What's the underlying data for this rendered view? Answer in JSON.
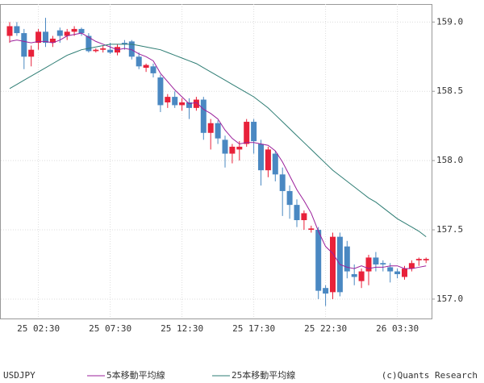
{
  "chart_data": {
    "type": "candlestick",
    "symbol": "USDJPY",
    "credit": "(c)Quants Research",
    "categories": [
      null,
      null,
      null,
      null,
      "25 02:30",
      null,
      null,
      null,
      null,
      null,
      null,
      null,
      null,
      null,
      "25 07:30",
      null,
      null,
      null,
      null,
      null,
      null,
      null,
      null,
      null,
      "25 12:30",
      null,
      null,
      null,
      null,
      null,
      null,
      null,
      null,
      null,
      "25 17:30",
      null,
      null,
      null,
      null,
      null,
      null,
      null,
      null,
      null,
      "25 22:30",
      null,
      null,
      null,
      null,
      null,
      null,
      null,
      null,
      null,
      "26 03:30",
      null,
      null,
      null,
      null
    ],
    "open": [
      158.9,
      158.97,
      158.92,
      158.75,
      158.85,
      158.93,
      158.85,
      158.94,
      158.9,
      158.93,
      158.95,
      158.9,
      158.79,
      158.8,
      158.8,
      158.78,
      158.85,
      158.86,
      158.75,
      158.67,
      158.68,
      158.6,
      158.42,
      158.46,
      158.4,
      158.42,
      158.38,
      158.44,
      158.2,
      158.27,
      158.15,
      158.05,
      158.08,
      158.12,
      158.28,
      158.12,
      157.93,
      158.05,
      157.9,
      157.78,
      157.68,
      157.57,
      157.5,
      157.5,
      157.08,
      157.05,
      157.45,
      157.38,
      157.18,
      157.13,
      157.2,
      157.3,
      157.26,
      157.23,
      157.2,
      157.16,
      157.22,
      157.28,
      157.28
    ],
    "high": [
      159.0,
      159.0,
      158.95,
      158.83,
      158.95,
      159.03,
      158.9,
      158.96,
      158.95,
      158.97,
      158.96,
      158.92,
      158.81,
      158.83,
      158.85,
      158.84,
      158.87,
      158.87,
      158.78,
      158.7,
      158.7,
      158.62,
      158.48,
      158.5,
      158.45,
      158.45,
      158.46,
      158.46,
      158.3,
      158.29,
      158.18,
      158.12,
      158.14,
      158.3,
      158.3,
      158.15,
      158.1,
      158.07,
      157.95,
      157.82,
      157.72,
      157.64,
      157.53,
      157.52,
      157.1,
      157.48,
      157.48,
      157.42,
      157.25,
      157.22,
      157.32,
      157.34,
      157.28,
      157.26,
      157.22,
      157.24,
      157.28,
      157.3,
      157.3
    ],
    "low": [
      158.85,
      158.9,
      158.66,
      158.68,
      158.8,
      158.82,
      158.82,
      158.85,
      158.87,
      158.9,
      158.9,
      158.78,
      158.78,
      158.78,
      158.77,
      158.76,
      158.8,
      158.73,
      158.66,
      158.64,
      158.6,
      158.35,
      158.38,
      158.38,
      158.36,
      158.3,
      158.36,
      158.15,
      158.08,
      158.12,
      157.95,
      157.98,
      158.0,
      158.1,
      158.05,
      157.82,
      157.88,
      157.85,
      157.6,
      157.58,
      157.52,
      157.5,
      157.48,
      157.0,
      156.95,
      157.0,
      157.02,
      157.15,
      157.1,
      157.08,
      157.1,
      157.2,
      157.2,
      157.12,
      157.15,
      157.14,
      157.2,
      157.24,
      157.26
    ],
    "close": [
      158.97,
      158.92,
      158.75,
      158.8,
      158.93,
      158.85,
      158.88,
      158.9,
      158.93,
      158.95,
      158.92,
      158.79,
      158.8,
      158.81,
      158.78,
      158.82,
      158.84,
      158.75,
      158.68,
      158.69,
      158.63,
      158.4,
      158.46,
      158.4,
      158.42,
      158.38,
      158.44,
      158.2,
      158.27,
      158.16,
      158.05,
      158.1,
      158.1,
      158.28,
      158.14,
      157.93,
      158.08,
      157.9,
      157.78,
      157.68,
      157.57,
      157.62,
      157.51,
      157.06,
      157.04,
      157.45,
      157.05,
      157.2,
      157.16,
      157.2,
      157.3,
      157.25,
      157.25,
      157.2,
      157.18,
      157.22,
      157.26,
      157.29,
      157.29
    ],
    "up_color": "#e8213a",
    "down_color": "#4a88c2",
    "lines": [
      {
        "name": "5本移動平均線",
        "color": "#9b1f9b",
        "values": [
          158.86,
          158.87,
          158.86,
          158.85,
          158.86,
          158.86,
          158.85,
          158.87,
          158.9,
          158.91,
          158.92,
          158.89,
          158.86,
          158.84,
          158.82,
          158.8,
          158.81,
          158.8,
          158.77,
          158.75,
          158.72,
          158.63,
          158.57,
          158.51,
          158.46,
          158.41,
          158.42,
          158.37,
          158.34,
          158.3,
          158.22,
          158.16,
          158.12,
          158.13,
          158.13,
          158.12,
          158.11,
          158.07,
          157.99,
          157.89,
          157.79,
          157.71,
          157.62,
          157.49,
          157.38,
          157.33,
          157.25,
          157.23,
          157.22,
          157.24,
          157.22,
          157.23,
          157.23,
          157.24,
          157.24,
          157.22,
          157.22,
          157.23,
          157.24
        ]
      },
      {
        "name": "25本移動平均線",
        "color": "#2e7d74",
        "values": [
          158.52,
          158.55,
          158.58,
          158.61,
          158.64,
          158.67,
          158.7,
          158.73,
          158.76,
          158.78,
          158.8,
          158.81,
          158.82,
          158.83,
          158.84,
          158.84,
          158.84,
          158.84,
          158.83,
          158.82,
          158.81,
          158.8,
          158.78,
          158.76,
          158.74,
          158.72,
          158.7,
          158.67,
          158.64,
          158.61,
          158.58,
          158.55,
          158.52,
          158.49,
          158.46,
          158.42,
          158.38,
          158.33,
          158.28,
          158.23,
          158.18,
          158.13,
          158.08,
          158.03,
          157.98,
          157.93,
          157.89,
          157.85,
          157.81,
          157.77,
          157.73,
          157.7,
          157.66,
          157.62,
          157.58,
          157.55,
          157.52,
          157.49,
          157.45
        ]
      }
    ],
    "ylim": [
      156.86,
      159.13
    ],
    "yticks": [
      {
        "value": 157,
        "label": "157.0"
      },
      157.5,
      {
        "value": 158,
        "label": "158.0"
      },
      158.5,
      {
        "value": 159,
        "label": "159.0"
      }
    ],
    "grid": true
  }
}
